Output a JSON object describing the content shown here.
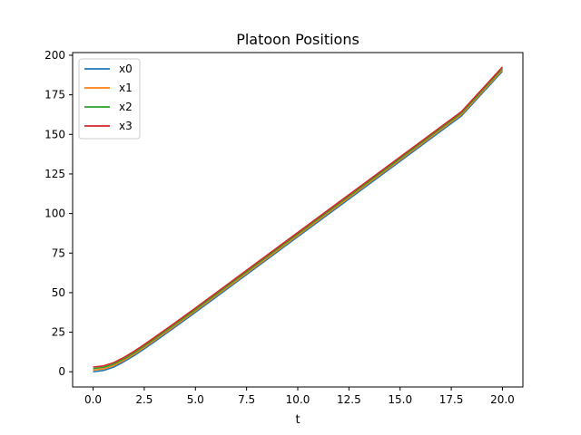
{
  "chart_data": {
    "type": "line",
    "title": "Platoon Positions",
    "xlabel": "t",
    "ylabel": "",
    "xlim": [
      -1.0,
      21.0
    ],
    "ylim": [
      -9.6,
      201.7
    ],
    "xticks": [
      0.0,
      2.5,
      5.0,
      7.5,
      10.0,
      12.5,
      15.0,
      17.5,
      20.0
    ],
    "xtick_labels": [
      "0.0",
      "2.5",
      "5.0",
      "7.5",
      "10.0",
      "12.5",
      "15.0",
      "17.5",
      "20.0"
    ],
    "yticks": [
      0,
      25,
      50,
      75,
      100,
      125,
      150,
      175,
      200
    ],
    "ytick_labels": [
      "0",
      "25",
      "50",
      "75",
      "100",
      "125",
      "150",
      "175",
      "200"
    ],
    "grid": false,
    "legend_position": "upper-left",
    "x": [
      0,
      0.5,
      1,
      1.5,
      2,
      2.5,
      3,
      4,
      5,
      6,
      8,
      10,
      12,
      14,
      16,
      18,
      20
    ],
    "series": [
      {
        "name": "x0",
        "color": "#1f77b4",
        "values": [
          0,
          0.8,
          2.9,
          6.3,
          10.2,
          14.5,
          19.0,
          28.2,
          37.6,
          47.1,
          66.2,
          85.3,
          104.4,
          123.5,
          142.6,
          161.7,
          189.9
        ]
      },
      {
        "name": "x1",
        "color": "#ff7f0e",
        "values": [
          1.0,
          1.8,
          3.9,
          7.2,
          11.1,
          15.4,
          19.9,
          29.1,
          38.5,
          48.0,
          67.1,
          86.2,
          105.3,
          124.4,
          143.5,
          162.6,
          190.8
        ]
      },
      {
        "name": "x2",
        "color": "#2ca02c",
        "values": [
          2.0,
          2.8,
          4.8,
          8.1,
          12.0,
          16.3,
          20.8,
          30.0,
          39.4,
          48.9,
          68.0,
          87.1,
          106.2,
          125.3,
          144.4,
          163.5,
          191.7
        ]
      },
      {
        "name": "x3",
        "color": "#d62728",
        "values": [
          3.0,
          3.7,
          5.7,
          9.0,
          12.9,
          17.2,
          21.7,
          30.9,
          40.3,
          49.8,
          68.9,
          88.0,
          107.1,
          126.2,
          145.3,
          164.4,
          192.6
        ]
      }
    ]
  }
}
